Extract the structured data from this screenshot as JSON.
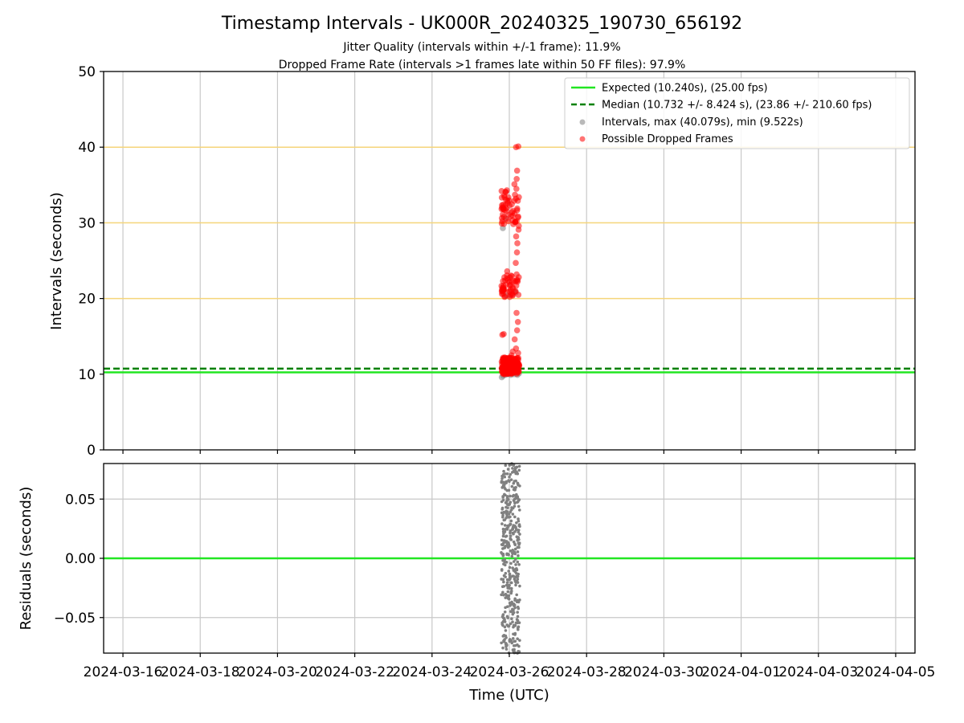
{
  "figure": {
    "title": "Timestamp Intervals - UK000R_20240325_190730_656192",
    "subtitle_1": "Jitter Quality (intervals within +/-1 frame): 11.9%",
    "subtitle_2": "Dropped Frame Rate (intervals >1 frames late within 50 FF files): 97.9%"
  },
  "chart_data": [
    {
      "type": "scatter",
      "ylabel": "Intervals (seconds)",
      "ylim": [
        0,
        50
      ],
      "yticks": [
        "0",
        "10",
        "20",
        "30",
        "40",
        "50"
      ],
      "xrange_days_note": "",
      "grid": true,
      "legend_position": "top-right",
      "reference_lines_y": [
        20,
        30,
        40
      ],
      "reference_line_color": "#f5d57a",
      "legend": [
        "Expected (10.240s), (25.00 fps)",
        "Median (10.732 +/- 8.424 s), (23.86 +/- 210.60 fps)",
        "Intervals, max (40.079s), min (9.522s)",
        "Possible Dropped Frames"
      ],
      "expected": 10.24,
      "median": 10.732,
      "max_interval": 40.079,
      "min_interval": 9.522,
      "series": [
        {
          "name": "Intervals, max (40.079s), min (9.522s)",
          "color": "#808080",
          "points": [
            [
              "2024-03-25T19:20",
              9.6
            ],
            [
              "2024-03-25T20:10",
              9.8
            ],
            [
              "2024-03-25T21:30",
              9.9
            ],
            [
              "2024-03-25T23:00",
              10.0
            ],
            [
              "2024-03-26T01:00",
              9.9
            ],
            [
              "2024-03-26T03:00",
              10.0
            ],
            [
              "2024-03-26T05:00",
              9.9
            ],
            [
              "2024-03-26T06:00",
              10.1
            ],
            [
              "2024-03-25T20:00",
              29.3
            ],
            [
              "2024-03-25T21:40",
              30.6
            ],
            [
              "2024-03-26T04:00",
              20.8
            ],
            [
              "2024-03-25T22:30",
              20.4
            ]
          ]
        },
        {
          "name": "Possible Dropped Frames",
          "color": "#ff0000",
          "points": [
            [
              "2024-03-25T19:30",
              10.4
            ],
            [
              "2024-03-25T19:50",
              11.0
            ],
            [
              "2024-03-25T20:20",
              11.6
            ],
            [
              "2024-03-25T20:40",
              10.8
            ],
            [
              "2024-03-25T21:10",
              12.2
            ],
            [
              "2024-03-25T21:40",
              10.6
            ],
            [
              "2024-03-25T22:20",
              11.8
            ],
            [
              "2024-03-25T23:10",
              10.9
            ],
            [
              "2024-03-26T00:10",
              11.3
            ],
            [
              "2024-03-26T01:20",
              12.5
            ],
            [
              "2024-03-26T02:40",
              10.7
            ],
            [
              "2024-03-26T03:50",
              11.9
            ],
            [
              "2024-03-26T04:40",
              10.5
            ],
            [
              "2024-03-26T05:30",
              12.8
            ],
            [
              "2024-03-26T06:10",
              11.1
            ],
            [
              "2024-03-26T05:50",
              10.3
            ],
            [
              "2024-03-26T04:10",
              13.4
            ],
            [
              "2024-03-26T03:20",
              14.6
            ],
            [
              "2024-03-26T04:50",
              15.8
            ],
            [
              "2024-03-26T05:20",
              16.9
            ],
            [
              "2024-03-26T04:30",
              18.1
            ],
            [
              "2024-03-25T19:40",
              15.2
            ],
            [
              "2024-03-25T20:30",
              15.3
            ],
            [
              "2024-03-26T02:10",
              13.0
            ],
            [
              "2024-03-25T19:25",
              20.6
            ],
            [
              "2024-03-25T19:45",
              21.4
            ],
            [
              "2024-03-25T20:05",
              22.3
            ],
            [
              "2024-03-25T20:25",
              21.0
            ],
            [
              "2024-03-25T20:55",
              22.8
            ],
            [
              "2024-03-25T21:20",
              20.3
            ],
            [
              "2024-03-25T21:50",
              21.8
            ],
            [
              "2024-03-25T22:40",
              23.6
            ],
            [
              "2024-03-26T00:40",
              21.2
            ],
            [
              "2024-03-26T03:30",
              20.9
            ],
            [
              "2024-03-26T04:20",
              21.7
            ],
            [
              "2024-03-26T05:10",
              22.4
            ],
            [
              "2024-03-26T05:40",
              20.5
            ],
            [
              "2024-03-26T04:00",
              24.7
            ],
            [
              "2024-03-26T04:45",
              26.1
            ],
            [
              "2024-03-26T05:00",
              27.3
            ],
            [
              "2024-03-26T04:15",
              28.2
            ],
            [
              "2024-03-25T19:35",
              30.2
            ],
            [
              "2024-03-25T19:55",
              31.1
            ],
            [
              "2024-03-25T20:15",
              32.4
            ],
            [
              "2024-03-25T20:35",
              30.8
            ],
            [
              "2024-03-25T20:50",
              33.6
            ],
            [
              "2024-03-25T21:15",
              31.7
            ],
            [
              "2024-03-25T21:35",
              34.1
            ],
            [
              "2024-03-25T22:00",
              30.5
            ],
            [
              "2024-03-25T22:50",
              32.9
            ],
            [
              "2024-03-26T01:50",
              31.4
            ],
            [
              "2024-03-26T03:40",
              30.1
            ],
            [
              "2024-03-26T04:05",
              33.2
            ],
            [
              "2024-03-26T04:25",
              34.5
            ],
            [
              "2024-03-26T04:55",
              31.9
            ],
            [
              "2024-03-26T05:25",
              30.7
            ],
            [
              "2024-03-26T05:55",
              29.6
            ],
            [
              "2024-03-26T05:45",
              29.1
            ],
            [
              "2024-03-26T04:35",
              35.8
            ],
            [
              "2024-03-26T04:50",
              36.9
            ],
            [
              "2024-03-26T03:10",
              35.1
            ],
            [
              "2024-03-26T04:10",
              40.0
            ],
            [
              "2024-03-26T05:35",
              40.1
            ]
          ]
        }
      ]
    },
    {
      "type": "scatter",
      "ylabel": "Residuals (seconds)",
      "xlabel": "Time (UTC)",
      "ylim": [
        -0.08,
        0.08
      ],
      "yticks": [
        "−0.05",
        "0.00",
        "0.05"
      ],
      "ytick_values": [
        -0.05,
        0.0,
        0.05
      ],
      "xticks": [
        "2024-03-16",
        "2024-03-18",
        "2024-03-20",
        "2024-03-22",
        "2024-03-24",
        "2024-03-26",
        "2024-03-28",
        "2024-03-30",
        "2024-04-01",
        "2024-04-03",
        "2024-04-05"
      ],
      "xrange": [
        "2024-03-15T12:00",
        "2024-04-05T12:00"
      ],
      "grid": true,
      "zero_line_color": "#22e622",
      "series": [
        {
          "name": "Residuals",
          "color": "#808080",
          "x_range": [
            "2024-03-25T19:00",
            "2024-03-26T06:30"
          ],
          "y_range": [
            -0.08,
            0.08
          ],
          "count": 420
        }
      ]
    }
  ],
  "colors": {
    "expected": "#22e622",
    "median": "#008000",
    "intervals": "#808080",
    "dropped": "#ff0000",
    "ref_lines": "#f5d57a",
    "grid": "#c8c8c8"
  }
}
